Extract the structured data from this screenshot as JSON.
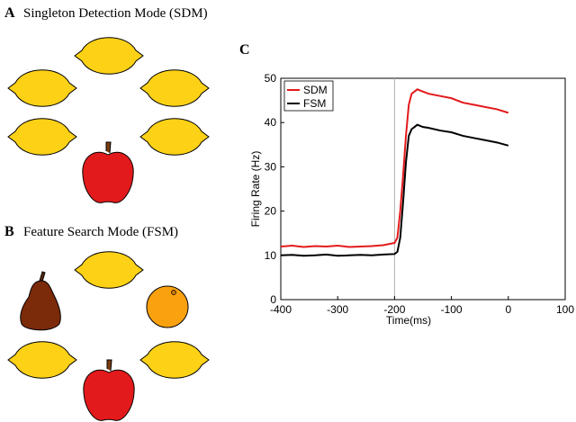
{
  "panels": [
    {
      "label": "A",
      "title": "Singleton Detection Mode (SDM)"
    },
    {
      "label": "B",
      "title": "Feature Search Mode (FSM)"
    }
  ],
  "chart_data": {
    "type": "line",
    "panel_label": "C",
    "x_label": "Time(ms)",
    "y_label": "Firing Rate (Hz)",
    "xlim": [
      -400,
      100
    ],
    "xticks": [
      -400,
      -300,
      -200,
      -100,
      0,
      100
    ],
    "ylim": [
      0,
      50
    ],
    "yticks": [
      0,
      10,
      20,
      30,
      40,
      50
    ],
    "vline": -200,
    "vline_color": "#b0b0b0",
    "legend": "upper-left",
    "x": [
      -400,
      -380,
      -360,
      -340,
      -320,
      -300,
      -280,
      -260,
      -240,
      -220,
      -200,
      -195,
      -190,
      -185,
      -180,
      -175,
      -170,
      -160,
      -150,
      -140,
      -120,
      -100,
      -80,
      -60,
      -40,
      -20,
      0
    ],
    "series": [
      {
        "name": "SDM",
        "color": "#e31a1c",
        "values": [
          12,
          12.2,
          11.9,
          12.1,
          12,
          12.2,
          11.9,
          12,
          12.1,
          12.3,
          12.8,
          14,
          20,
          28,
          37,
          44,
          46.5,
          47.5,
          47,
          46.5,
          46,
          45.5,
          44.5,
          44,
          43.5,
          43,
          42.2
        ]
      },
      {
        "name": "FSM",
        "color": "#000000",
        "values": [
          10,
          10.1,
          9.9,
          10,
          10.2,
          9.9,
          10,
          10.1,
          10,
          10.2,
          10.3,
          10.8,
          14,
          22,
          31,
          37,
          38.5,
          39.5,
          39,
          38.8,
          38.2,
          37.8,
          37,
          36.5,
          36,
          35.5,
          34.8
        ]
      }
    ]
  }
}
